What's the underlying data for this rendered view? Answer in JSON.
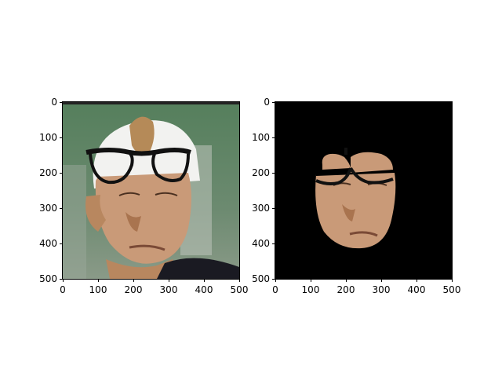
{
  "figure": {
    "panels": [
      {
        "name": "original-image-with-glasses",
        "background": "#4f7a58",
        "y_ticks": [
          "0",
          "100",
          "200",
          "300",
          "400",
          "500"
        ],
        "x_ticks": [
          "0",
          "100",
          "200",
          "300",
          "400",
          "500"
        ]
      },
      {
        "name": "segmented-face-with-glasses",
        "background": "#000000",
        "y_ticks": [
          "0",
          "100",
          "200",
          "300",
          "400",
          "500"
        ],
        "x_ticks": [
          "0",
          "100",
          "200",
          "300",
          "400",
          "500"
        ]
      }
    ]
  },
  "colors": {
    "skin": "#c99a78",
    "skin_shadow": "#a9744f",
    "hair": "#b58a58",
    "cap": "#f2f2f0",
    "shirt": "#1a1a22",
    "glasses": "#111111",
    "field_green": "#4f7a58"
  }
}
